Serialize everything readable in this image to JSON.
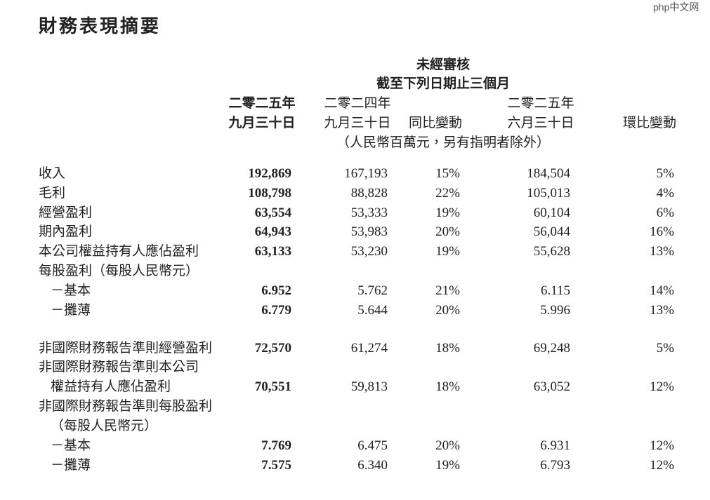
{
  "title": "財務表現摘要",
  "watermark": "php中文网",
  "header": {
    "group": [
      "未經審核",
      "截至下列日期止三個月"
    ],
    "columns": [
      [
        "二零二五年",
        "九月三十日"
      ],
      [
        "二零二四年",
        "九月三十日"
      ],
      [
        "同比變動"
      ],
      [
        "二零二五年",
        "六月三十日"
      ],
      [
        "環比變動"
      ]
    ],
    "unit": "（人民幣百萬元，另有指明者除外）"
  },
  "table": {
    "rows": [
      {
        "label": "收入",
        "values": [
          "192,869",
          "167,193",
          "15%",
          "184,504",
          "5%"
        ]
      },
      {
        "label": "毛利",
        "values": [
          "108,798",
          "88,828",
          "22%",
          "105,013",
          "4%"
        ]
      },
      {
        "label": "經營盈利",
        "values": [
          "63,554",
          "53,333",
          "19%",
          "60,104",
          "6%"
        ]
      },
      {
        "label": "期內盈利",
        "values": [
          "64,943",
          "53,983",
          "20%",
          "56,044",
          "16%"
        ]
      },
      {
        "label": "本公司權益持有人應佔盈利",
        "values": [
          "63,133",
          "53,230",
          "19%",
          "55,628",
          "13%"
        ]
      },
      {
        "label": "每股盈利（每股人民幣元）",
        "values": []
      },
      {
        "label": "－基本",
        "values": [
          "6.952",
          "5.762",
          "21%",
          "6.115",
          "14%"
        ]
      },
      {
        "label": "－攤薄",
        "values": [
          "6.779",
          "5.644",
          "20%",
          "5.996",
          "13%"
        ]
      },
      {
        "label": "非國際財務報告準則經營盈利",
        "values": [
          "72,570",
          "61,274",
          "18%",
          "69,248",
          "5%"
        ]
      },
      {
        "label": "非國際財務報告準則本公司",
        "values": []
      },
      {
        "label": "權益持有人應佔盈利",
        "values": [
          "70,551",
          "59,813",
          "18%",
          "63,052",
          "12%"
        ]
      },
      {
        "label": "非國際財務報告準則每股盈利",
        "values": []
      },
      {
        "label": "（每股人民幣元）",
        "values": []
      },
      {
        "label": "－基本",
        "values": [
          "7.769",
          "6.475",
          "20%",
          "6.931",
          "12%"
        ]
      },
      {
        "label": "－攤薄",
        "values": [
          "7.575",
          "6.340",
          "19%",
          "6.793",
          "12%"
        ]
      }
    ]
  }
}
